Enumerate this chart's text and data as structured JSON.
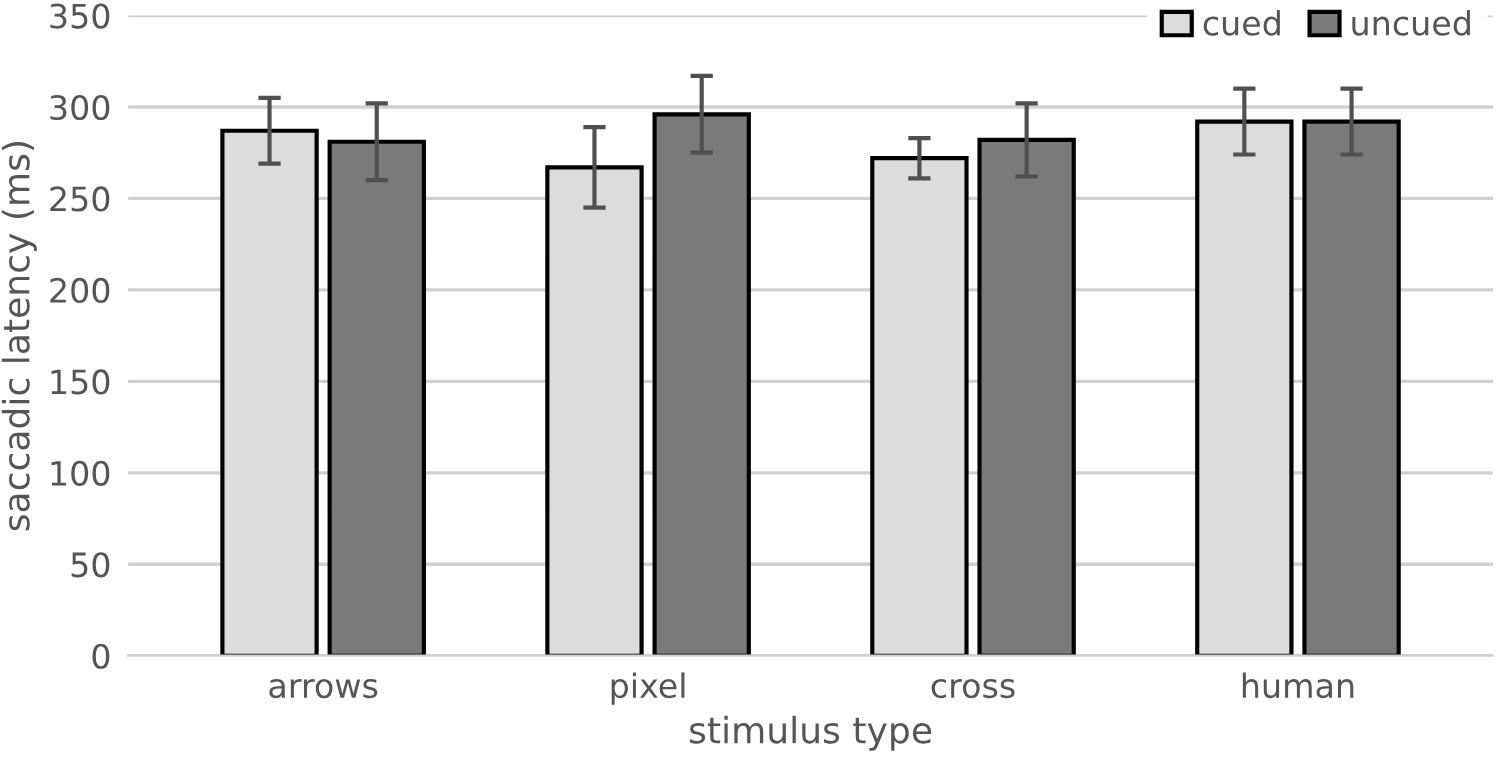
{
  "chart_data": {
    "type": "bar",
    "xlabel": "stimulus type",
    "ylabel": "saccadic latency (ms)",
    "categories": [
      "arrows",
      "pixel",
      "cross",
      "human"
    ],
    "series": [
      {
        "name": "cued",
        "color": "#dcdcdc",
        "values": [
          287,
          267,
          272,
          292
        ],
        "errors": [
          18,
          22,
          11,
          18
        ]
      },
      {
        "name": "uncued",
        "color": "#7a7a7a",
        "values": [
          281,
          296,
          282,
          292
        ],
        "errors": [
          21,
          21,
          20,
          18
        ]
      }
    ],
    "ylim": [
      0,
      350
    ],
    "yticks": [
      0,
      50,
      100,
      150,
      200,
      250,
      300,
      350
    ],
    "grid": "y",
    "legend": "top right"
  }
}
